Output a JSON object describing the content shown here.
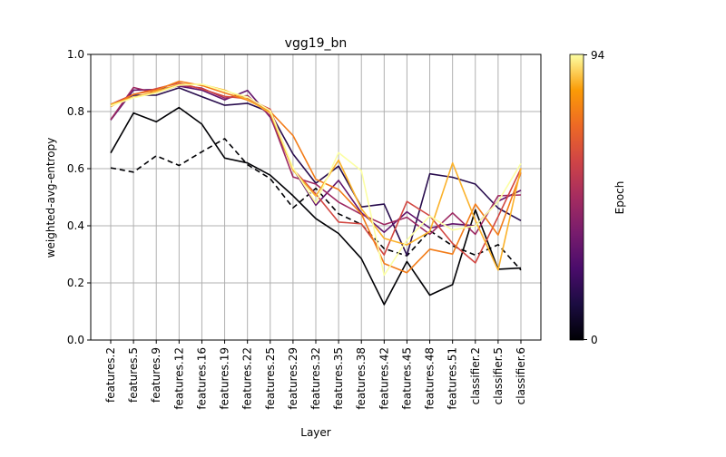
{
  "chart_data": {
    "type": "line",
    "title": "vgg19_bn",
    "xlabel": "Layer",
    "ylabel": "weighted-avg-entropy",
    "ylim": [
      0,
      1
    ],
    "yticks": [
      "0.0",
      "0.2",
      "0.4",
      "0.6",
      "0.8",
      "1.0"
    ],
    "grid": true,
    "categories": [
      "features.2",
      "features.5",
      "features.9",
      "features.12",
      "features.16",
      "features.19",
      "features.22",
      "features.25",
      "features.29",
      "features.32",
      "features.35",
      "features.38",
      "features.42",
      "features.45",
      "features.48",
      "features.51",
      "classifier.2",
      "classifier.5",
      "classifier.6"
    ],
    "colorbar": {
      "label": "Epoch",
      "min_label": "0",
      "max_label": "94",
      "min": 0,
      "max": 94
    },
    "series": [
      {
        "epoch": 0,
        "style": "dashed",
        "values": [
          0.603,
          0.588,
          0.645,
          0.611,
          0.659,
          0.705,
          0.614,
          0.565,
          0.463,
          0.531,
          0.442,
          0.405,
          0.32,
          0.295,
          0.383,
          0.33,
          0.297,
          0.334,
          0.245
        ]
      },
      {
        "epoch": 0,
        "style": "solid",
        "values": [
          0.655,
          0.795,
          0.764,
          0.814,
          0.756,
          0.637,
          0.62,
          0.577,
          0.505,
          0.425,
          0.373,
          0.285,
          0.124,
          0.275,
          0.157,
          0.194,
          0.456,
          0.248,
          0.252
        ]
      },
      {
        "epoch": 15,
        "style": "solid",
        "values": [
          0.825,
          0.857,
          0.857,
          0.883,
          0.852,
          0.822,
          0.829,
          0.797,
          0.651,
          0.549,
          0.609,
          0.466,
          0.476,
          0.297,
          0.582,
          0.57,
          0.546,
          0.462,
          0.418
        ]
      },
      {
        "epoch": 30,
        "style": "solid",
        "values": [
          0.77,
          0.875,
          0.877,
          0.889,
          0.875,
          0.841,
          0.874,
          0.78,
          0.6,
          0.472,
          0.559,
          0.446,
          0.377,
          0.449,
          0.392,
          0.407,
          0.4,
          0.486,
          0.524
        ]
      },
      {
        "epoch": 45,
        "style": "solid",
        "values": [
          0.772,
          0.884,
          0.865,
          0.892,
          0.882,
          0.847,
          0.856,
          0.785,
          0.571,
          0.546,
          0.483,
          0.44,
          0.404,
          0.43,
          0.37,
          0.445,
          0.37,
          0.505,
          0.508
        ]
      },
      {
        "epoch": 60,
        "style": "solid",
        "values": [
          0.825,
          0.86,
          0.88,
          0.9,
          0.879,
          0.853,
          0.845,
          0.808,
          0.598,
          0.511,
          0.413,
          0.407,
          0.298,
          0.485,
          0.435,
          0.338,
          0.27,
          0.432,
          0.6
        ]
      },
      {
        "epoch": 75,
        "style": "solid",
        "values": [
          0.817,
          0.86,
          0.875,
          0.906,
          0.891,
          0.865,
          0.84,
          0.8,
          0.716,
          0.563,
          0.527,
          0.442,
          0.268,
          0.236,
          0.318,
          0.301,
          0.476,
          0.368,
          0.586
        ]
      },
      {
        "epoch": 85,
        "style": "solid",
        "values": [
          0.825,
          0.85,
          0.87,
          0.895,
          0.895,
          0.875,
          0.843,
          0.795,
          0.595,
          0.504,
          0.63,
          0.46,
          0.356,
          0.333,
          0.38,
          0.62,
          0.419,
          0.245,
          0.602
        ]
      },
      {
        "epoch": 94,
        "style": "solid",
        "values": [
          0.82,
          0.848,
          0.865,
          0.892,
          0.896,
          0.872,
          0.851,
          0.803,
          0.603,
          0.479,
          0.656,
          0.593,
          0.227,
          0.35,
          0.434,
          0.385,
          0.4,
          0.485,
          0.618
        ]
      }
    ]
  }
}
